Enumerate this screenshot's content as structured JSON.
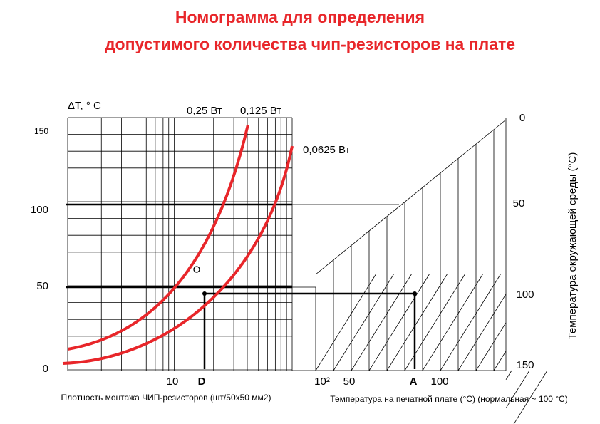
{
  "title": [
    "Номограмма для определения",
    "допустимого количества чип-резисторов на плате"
  ],
  "left_axis": {
    "label": "ΔT, ° C",
    "ticks": [
      "150",
      "100",
      "50",
      "0"
    ]
  },
  "curve_labels": [
    "0,25 Вт",
    "0,125 Вт",
    "0,0625 Вт"
  ],
  "right_axis": {
    "label": "Температура окружающей среды (°C)",
    "ticks": [
      "0",
      "50",
      "100",
      "150"
    ]
  },
  "bottom_left": {
    "ticks": [
      "10",
      "D"
    ],
    "label": "Плотность монтажа ЧИП-резисторов (шт/50х50 мм2)"
  },
  "bottom_right": {
    "ticks": [
      "10²",
      "50",
      "A",
      "100"
    ],
    "label": "Температура на печатной плате (°C) (нормальная  ~ 100 °C)"
  }
}
